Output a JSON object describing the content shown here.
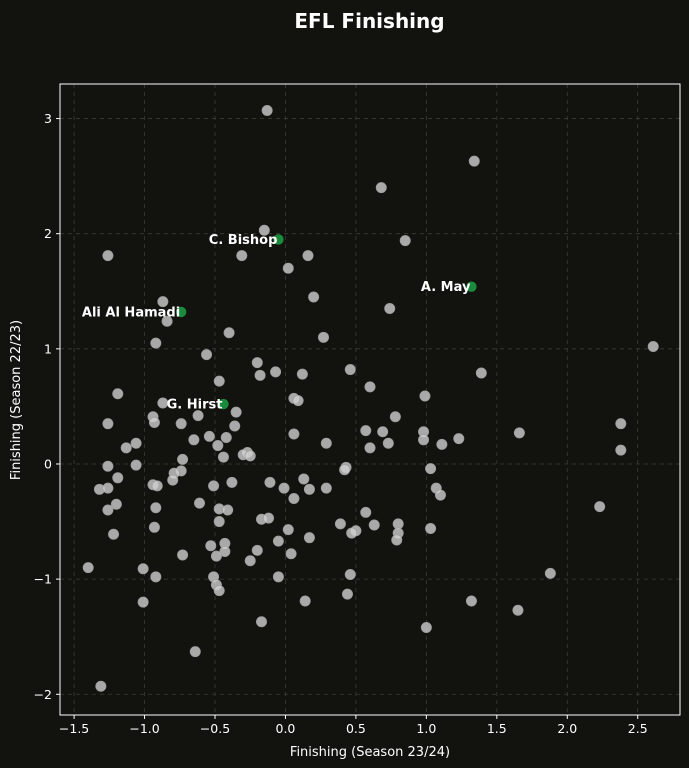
{
  "chart_data": {
    "type": "scatter",
    "title": "EFL Finishing",
    "xlabel": "Finishing (Season 23/24)",
    "ylabel": "Finishing (Season 22/23)",
    "xlim": [
      -1.6,
      2.8
    ],
    "ylim": [
      -2.18,
      3.3
    ],
    "xticks": [
      -1.5,
      -1.0,
      -0.5,
      0.0,
      0.5,
      1.0,
      1.5,
      2.0,
      2.5
    ],
    "yticks": [
      -2,
      -1,
      0,
      1,
      2,
      3
    ],
    "xtick_labels": [
      "−1.5",
      "−1.0",
      "−0.5",
      "0.0",
      "0.5",
      "1.0",
      "1.5",
      "2.0",
      "2.5"
    ],
    "ytick_labels": [
      "−2",
      "−1",
      "0",
      "1",
      "2",
      "3"
    ],
    "grid": true,
    "highlighted": [
      {
        "label": "C. Bishop",
        "x": -0.05,
        "y": 1.95
      },
      {
        "label": "A. May",
        "x": 1.32,
        "y": 1.54
      },
      {
        "label": "Ali Al Hamadi",
        "x": -0.74,
        "y": 1.32
      },
      {
        "label": "G. Hirst",
        "x": -0.44,
        "y": 0.52
      }
    ],
    "points": [
      [
        -0.13,
        3.07
      ],
      [
        1.34,
        2.63
      ],
      [
        0.68,
        2.4
      ],
      [
        -0.15,
        2.03
      ],
      [
        0.85,
        1.94
      ],
      [
        -1.26,
        1.81
      ],
      [
        -0.31,
        1.81
      ],
      [
        0.16,
        1.81
      ],
      [
        0.02,
        1.7
      ],
      [
        0.2,
        1.45
      ],
      [
        -0.87,
        1.41
      ],
      [
        0.74,
        1.35
      ],
      [
        -0.84,
        1.24
      ],
      [
        -0.4,
        1.14
      ],
      [
        0.27,
        1.1
      ],
      [
        -0.92,
        1.05
      ],
      [
        2.61,
        1.02
      ],
      [
        -0.56,
        0.95
      ],
      [
        -0.2,
        0.88
      ],
      [
        0.46,
        0.82
      ],
      [
        -0.07,
        0.8
      ],
      [
        0.12,
        0.78
      ],
      [
        1.39,
        0.79
      ],
      [
        -0.18,
        0.77
      ],
      [
        -0.47,
        0.72
      ],
      [
        0.6,
        0.67
      ],
      [
        -1.19,
        0.61
      ],
      [
        0.99,
        0.59
      ],
      [
        0.06,
        0.57
      ],
      [
        0.09,
        0.55
      ],
      [
        -0.87,
        0.53
      ],
      [
        -0.35,
        0.45
      ],
      [
        -0.62,
        0.42
      ],
      [
        -0.94,
        0.41
      ],
      [
        0.78,
        0.41
      ],
      [
        -0.93,
        0.36
      ],
      [
        -1.26,
        0.35
      ],
      [
        -0.74,
        0.35
      ],
      [
        2.38,
        0.35
      ],
      [
        -0.36,
        0.33
      ],
      [
        0.57,
        0.29
      ],
      [
        0.69,
        0.28
      ],
      [
        0.98,
        0.28
      ],
      [
        1.66,
        0.27
      ],
      [
        0.06,
        0.26
      ],
      [
        -0.54,
        0.24
      ],
      [
        -0.42,
        0.23
      ],
      [
        1.23,
        0.22
      ],
      [
        -0.65,
        0.21
      ],
      [
        0.98,
        0.21
      ],
      [
        -1.06,
        0.18
      ],
      [
        0.29,
        0.18
      ],
      [
        0.73,
        0.18
      ],
      [
        1.11,
        0.17
      ],
      [
        -0.48,
        0.16
      ],
      [
        -1.13,
        0.14
      ],
      [
        0.6,
        0.14
      ],
      [
        2.38,
        0.12
      ],
      [
        -0.27,
        0.1
      ],
      [
        -0.3,
        0.08
      ],
      [
        -0.25,
        0.07
      ],
      [
        -0.44,
        0.06
      ],
      [
        -0.73,
        0.04
      ],
      [
        -1.06,
        -0.01
      ],
      [
        -1.26,
        -0.02
      ],
      [
        1.03,
        -0.04
      ],
      [
        0.43,
        -0.03
      ],
      [
        0.42,
        -0.05
      ],
      [
        -0.74,
        -0.06
      ],
      [
        -0.79,
        -0.08
      ],
      [
        -1.19,
        -0.12
      ],
      [
        -0.8,
        -0.14
      ],
      [
        0.13,
        -0.13
      ],
      [
        -0.38,
        -0.16
      ],
      [
        -0.11,
        -0.16
      ],
      [
        -0.94,
        -0.18
      ],
      [
        -0.91,
        -0.19
      ],
      [
        -0.51,
        -0.19
      ],
      [
        -1.32,
        -0.22
      ],
      [
        -1.26,
        -0.21
      ],
      [
        -0.01,
        -0.21
      ],
      [
        0.17,
        -0.22
      ],
      [
        0.29,
        -0.21
      ],
      [
        1.07,
        -0.21
      ],
      [
        1.1,
        -0.27
      ],
      [
        0.06,
        -0.3
      ],
      [
        -0.61,
        -0.34
      ],
      [
        -1.2,
        -0.35
      ],
      [
        2.23,
        -0.37
      ],
      [
        -0.92,
        -0.38
      ],
      [
        -1.26,
        -0.4
      ],
      [
        -0.47,
        -0.39
      ],
      [
        -0.41,
        -0.4
      ],
      [
        0.57,
        -0.42
      ],
      [
        -0.17,
        -0.48
      ],
      [
        -0.12,
        -0.47
      ],
      [
        -0.47,
        -0.5
      ],
      [
        0.39,
        -0.52
      ],
      [
        0.63,
        -0.53
      ],
      [
        0.8,
        -0.52
      ],
      [
        1.03,
        -0.56
      ],
      [
        -0.93,
        -0.55
      ],
      [
        0.02,
        -0.57
      ],
      [
        0.5,
        -0.58
      ],
      [
        0.47,
        -0.6
      ],
      [
        -1.22,
        -0.61
      ],
      [
        0.8,
        -0.6
      ],
      [
        0.17,
        -0.64
      ],
      [
        0.79,
        -0.66
      ],
      [
        -0.05,
        -0.67
      ],
      [
        -0.43,
        -0.69
      ],
      [
        -0.53,
        -0.71
      ],
      [
        -0.2,
        -0.75
      ],
      [
        -0.43,
        -0.76
      ],
      [
        0.04,
        -0.78
      ],
      [
        -0.73,
        -0.79
      ],
      [
        -0.49,
        -0.8
      ],
      [
        -0.25,
        -0.84
      ],
      [
        -1.4,
        -0.9
      ],
      [
        -1.01,
        -0.91
      ],
      [
        1.88,
        -0.95
      ],
      [
        0.46,
        -0.96
      ],
      [
        -0.92,
        -0.98
      ],
      [
        -0.51,
        -0.98
      ],
      [
        -0.05,
        -0.98
      ],
      [
        -0.49,
        -1.05
      ],
      [
        -0.47,
        -1.1
      ],
      [
        0.44,
        -1.13
      ],
      [
        0.14,
        -1.19
      ],
      [
        1.32,
        -1.19
      ],
      [
        -1.01,
        -1.2
      ],
      [
        1.65,
        -1.27
      ],
      [
        -0.17,
        -1.37
      ],
      [
        1.0,
        -1.42
      ],
      [
        -0.64,
        -1.63
      ],
      [
        -1.31,
        -1.93
      ]
    ]
  }
}
